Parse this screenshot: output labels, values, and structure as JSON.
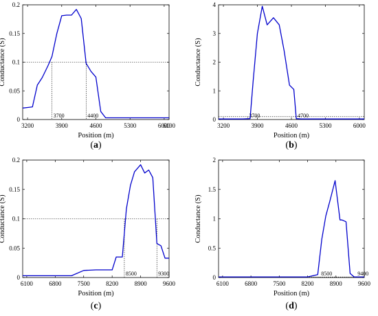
{
  "chart_data": [
    {
      "panel": "(a)",
      "type": "line",
      "xlabel": "Position (m)",
      "ylabel": "Conductance (S)",
      "xlim": [
        3100,
        6100
      ],
      "ylim": [
        0,
        0.2
      ],
      "xticks": [
        3200,
        3900,
        4600,
        5300,
        6000,
        6100
      ],
      "yticks": [
        0,
        0.05,
        0.1,
        0.15,
        0.2
      ],
      "series": [
        {
          "color": "#0000cc",
          "x": [
            3100,
            3200,
            3300,
            3400,
            3500,
            3620,
            3700,
            3800,
            3900,
            4000,
            4100,
            4200,
            4300,
            4400,
            4500,
            4600,
            4700,
            4800,
            5000,
            5300,
            6000,
            6100
          ],
          "y": [
            0.02,
            0.021,
            0.022,
            0.06,
            0.073,
            0.094,
            0.11,
            0.15,
            0.181,
            0.182,
            0.182,
            0.192,
            0.176,
            0.098,
            0.084,
            0.074,
            0.014,
            0.003,
            0.003,
            0.003,
            0.003,
            0.003
          ]
        }
      ],
      "reference_line": 0.1,
      "markers": [
        {
          "x": 3700,
          "label": "3700"
        },
        {
          "x": 4400,
          "label": "4400"
        }
      ]
    },
    {
      "panel": "(b)",
      "type": "line",
      "xlabel": "Position (m)",
      "ylabel": "Conductance (S)",
      "xlim": [
        3100,
        6100
      ],
      "ylim": [
        0,
        4
      ],
      "xticks": [
        3200,
        3900,
        4600,
        5300,
        6000
      ],
      "yticks": [
        0,
        1,
        2,
        3,
        4
      ],
      "series": [
        {
          "color": "#0000cc",
          "x": [
            3100,
            3600,
            3750,
            3810,
            3900,
            4000,
            4100,
            4230,
            4350,
            4450,
            4560,
            4650,
            4700,
            4800,
            5300,
            6100
          ],
          "y": [
            0.02,
            0.02,
            0.03,
            1.3,
            3.0,
            3.95,
            3.3,
            3.55,
            3.3,
            2.4,
            1.2,
            1.05,
            0.03,
            0.02,
            0.02,
            0.02
          ]
        }
      ],
      "reference_line": 0.1,
      "markers": [
        {
          "x": 3700,
          "label": "3700"
        },
        {
          "x": 4700,
          "label": "4700"
        }
      ]
    },
    {
      "panel": "(c)",
      "type": "line",
      "xlabel": "Position (m)",
      "ylabel": "Conductance (S)",
      "xlim": [
        6000,
        9600
      ],
      "ylim": [
        0,
        0.2
      ],
      "xticks": [
        6100,
        6800,
        7500,
        8200,
        8900,
        9600
      ],
      "yticks": [
        0,
        0.05,
        0.1,
        0.15,
        0.2
      ],
      "series": [
        {
          "color": "#0000cc",
          "x": [
            6000,
            6500,
            7200,
            7500,
            7800,
            8200,
            8300,
            8450,
            8550,
            8650,
            8750,
            8900,
            9000,
            9100,
            9200,
            9300,
            9400,
            9500,
            9600
          ],
          "y": [
            0.003,
            0.003,
            0.003,
            0.012,
            0.013,
            0.013,
            0.035,
            0.035,
            0.117,
            0.157,
            0.18,
            0.192,
            0.178,
            0.183,
            0.17,
            0.058,
            0.054,
            0.033,
            0.033
          ]
        }
      ],
      "reference_line": 0.1,
      "markers": [
        {
          "x": 8500,
          "label": "8500"
        },
        {
          "x": 9300,
          "label": "9300"
        }
      ]
    },
    {
      "panel": "(d)",
      "type": "line",
      "xlabel": "Position (m)",
      "ylabel": "Conductance (S)",
      "xlim": [
        6000,
        9600
      ],
      "ylim": [
        0,
        2
      ],
      "xticks": [
        6100,
        6800,
        7500,
        8200,
        8900,
        9600
      ],
      "yticks": [
        0,
        0.5,
        1,
        1.5,
        2
      ],
      "series": [
        {
          "color": "#0000cc",
          "x": [
            6000,
            8200,
            8450,
            8550,
            8650,
            8750,
            8880,
            9000,
            9050,
            9150,
            9250,
            9350,
            9600
          ],
          "y": [
            0.01,
            0.01,
            0.05,
            0.65,
            1.05,
            1.3,
            1.65,
            0.98,
            0.98,
            0.95,
            0.07,
            0.01,
            0.01
          ]
        }
      ],
      "reference_line": 0.01,
      "markers": [
        {
          "x": 8500,
          "label": "8500"
        },
        {
          "x": 9400,
          "label": "9400"
        }
      ]
    }
  ]
}
